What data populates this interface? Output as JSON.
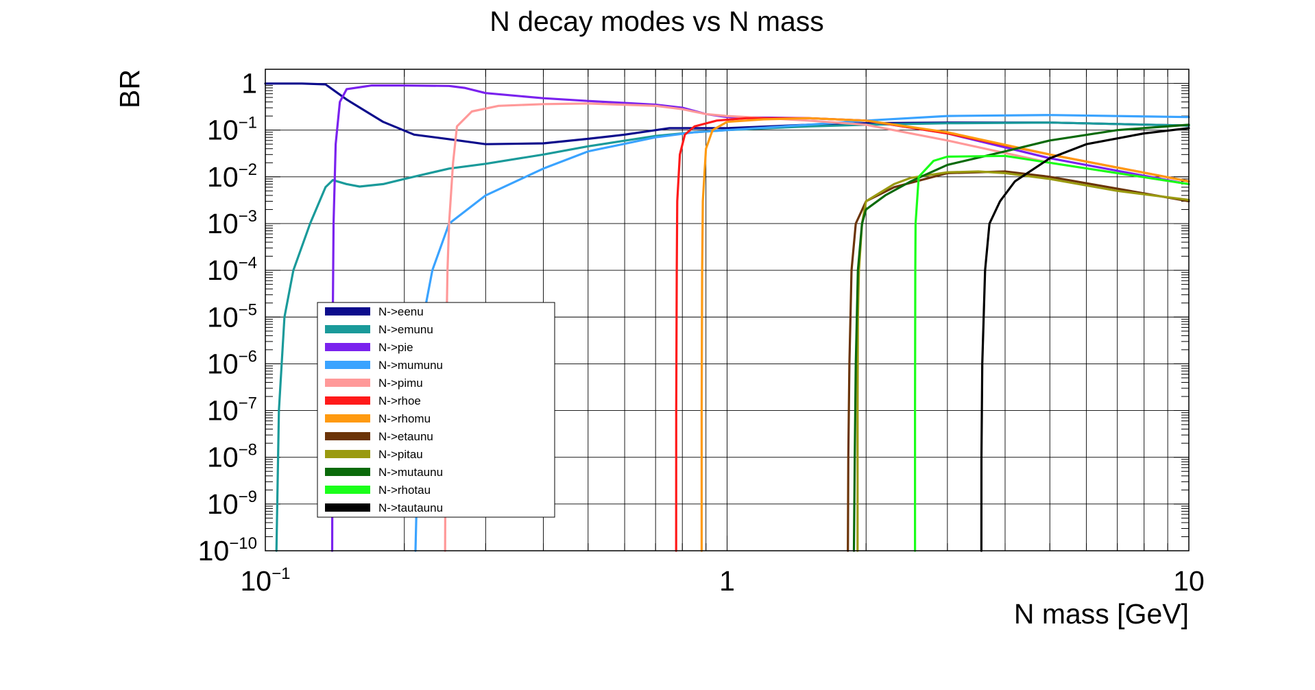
{
  "chart_data": {
    "type": "line",
    "title": "N decay modes vs N mass",
    "xlabel": "N mass [GeV]",
    "ylabel": "BR",
    "x_scale": "log",
    "y_scale": "log",
    "xlim": [
      0.1,
      10
    ],
    "ylim": [
      1e-10,
      2
    ],
    "grid": true,
    "legend_position": "lower-left",
    "x_ticks": [
      {
        "value": 0.1,
        "base": "10",
        "exp": "−1"
      },
      {
        "value": 1,
        "base": "1",
        "exp": ""
      },
      {
        "value": 10,
        "base": "10",
        "exp": ""
      }
    ],
    "y_ticks": [
      {
        "value": 1,
        "base": "1",
        "exp": ""
      },
      {
        "value": 0.1,
        "base": "10",
        "exp": "−1"
      },
      {
        "value": 0.01,
        "base": "10",
        "exp": "−2"
      },
      {
        "value": 0.001,
        "base": "10",
        "exp": "−3"
      },
      {
        "value": 0.0001,
        "base": "10",
        "exp": "−4"
      },
      {
        "value": 1e-05,
        "base": "10",
        "exp": "−5"
      },
      {
        "value": 1e-06,
        "base": "10",
        "exp": "−6"
      },
      {
        "value": 1e-07,
        "base": "10",
        "exp": "−7"
      },
      {
        "value": 1e-08,
        "base": "10",
        "exp": "−8"
      },
      {
        "value": 1e-09,
        "base": "10",
        "exp": "−9"
      },
      {
        "value": 1e-10,
        "base": "10",
        "exp": "−10"
      }
    ],
    "series": [
      {
        "name": "N->eenu",
        "color": "#0c0c8c",
        "points": [
          [
            0.1,
            0.99
          ],
          [
            0.12,
            0.99
          ],
          [
            0.135,
            0.95
          ],
          [
            0.15,
            0.45
          ],
          [
            0.18,
            0.15
          ],
          [
            0.21,
            0.08
          ],
          [
            0.25,
            0.064
          ],
          [
            0.3,
            0.05
          ],
          [
            0.4,
            0.052
          ],
          [
            0.5,
            0.065
          ],
          [
            0.6,
            0.08
          ],
          [
            0.75,
            0.11
          ],
          [
            0.85,
            0.11
          ],
          [
            1.0,
            0.11
          ],
          [
            1.5,
            0.13
          ],
          [
            2.0,
            0.14
          ],
          [
            3.0,
            0.145
          ],
          [
            5.0,
            0.145
          ],
          [
            10.0,
            0.125
          ]
        ]
      },
      {
        "name": "N->emunu",
        "color": "#1a9a9a",
        "points": [
          [
            0.1057,
            1e-10
          ],
          [
            0.107,
            1e-07
          ],
          [
            0.11,
            1e-05
          ],
          [
            0.115,
            0.0001
          ],
          [
            0.125,
            0.001
          ],
          [
            0.135,
            0.006
          ],
          [
            0.14,
            0.0085
          ],
          [
            0.15,
            0.007
          ],
          [
            0.16,
            0.0062
          ],
          [
            0.18,
            0.007
          ],
          [
            0.2,
            0.009
          ],
          [
            0.25,
            0.015
          ],
          [
            0.3,
            0.019
          ],
          [
            0.4,
            0.03
          ],
          [
            0.5,
            0.045
          ],
          [
            0.7,
            0.075
          ],
          [
            0.85,
            0.09
          ],
          [
            1.0,
            0.1
          ],
          [
            1.5,
            0.12
          ],
          [
            2.0,
            0.13
          ],
          [
            3.0,
            0.14
          ],
          [
            5.0,
            0.145
          ],
          [
            10.0,
            0.125
          ]
        ]
      },
      {
        "name": "N->pie",
        "color": "#7a22ee",
        "points": [
          [
            0.13957,
            1e-10
          ],
          [
            0.14,
            1e-05
          ],
          [
            0.1405,
            0.001
          ],
          [
            0.142,
            0.05
          ],
          [
            0.145,
            0.4
          ],
          [
            0.15,
            0.75
          ],
          [
            0.17,
            0.9
          ],
          [
            0.2,
            0.9
          ],
          [
            0.25,
            0.88
          ],
          [
            0.27,
            0.8
          ],
          [
            0.3,
            0.62
          ],
          [
            0.4,
            0.48
          ],
          [
            0.5,
            0.42
          ],
          [
            0.7,
            0.35
          ],
          [
            0.8,
            0.3
          ],
          [
            0.9,
            0.22
          ],
          [
            1.0,
            0.19
          ],
          [
            1.5,
            0.18
          ],
          [
            2.0,
            0.16
          ],
          [
            3.0,
            0.085
          ],
          [
            5.0,
            0.025
          ],
          [
            10.0,
            0.007
          ]
        ]
      },
      {
        "name": "N->mumunu",
        "color": "#3aa3ff",
        "points": [
          [
            0.2114,
            1e-10
          ],
          [
            0.215,
            1e-07
          ],
          [
            0.22,
            1e-05
          ],
          [
            0.23,
            0.0001
          ],
          [
            0.25,
            0.001
          ],
          [
            0.3,
            0.004
          ],
          [
            0.4,
            0.015
          ],
          [
            0.5,
            0.035
          ],
          [
            0.7,
            0.07
          ],
          [
            0.85,
            0.09
          ],
          [
            1.0,
            0.1
          ],
          [
            1.5,
            0.13
          ],
          [
            2.0,
            0.16
          ],
          [
            3.0,
            0.2
          ],
          [
            5.0,
            0.21
          ],
          [
            10.0,
            0.19
          ]
        ]
      },
      {
        "name": "N->pimu",
        "color": "#ff9999",
        "points": [
          [
            0.2451,
            1e-10
          ],
          [
            0.246,
            1e-06
          ],
          [
            0.248,
            0.0001
          ],
          [
            0.25,
            0.001
          ],
          [
            0.255,
            0.02
          ],
          [
            0.26,
            0.12
          ],
          [
            0.28,
            0.25
          ],
          [
            0.32,
            0.33
          ],
          [
            0.4,
            0.36
          ],
          [
            0.5,
            0.37
          ],
          [
            0.7,
            0.33
          ],
          [
            0.8,
            0.28
          ],
          [
            0.9,
            0.22
          ],
          [
            1.0,
            0.2
          ],
          [
            1.5,
            0.16
          ],
          [
            2.0,
            0.13
          ],
          [
            3.0,
            0.06
          ],
          [
            5.0,
            0.02
          ],
          [
            10.0,
            0.007
          ]
        ]
      },
      {
        "name": "N->rhoe",
        "color": "#ff1a1a",
        "points": [
          [
            0.7756,
            1e-10
          ],
          [
            0.776,
            1e-07
          ],
          [
            0.778,
            0.0001
          ],
          [
            0.78,
            0.003
          ],
          [
            0.79,
            0.03
          ],
          [
            0.81,
            0.08
          ],
          [
            0.85,
            0.12
          ],
          [
            0.95,
            0.16
          ],
          [
            1.1,
            0.18
          ],
          [
            1.5,
            0.18
          ],
          [
            2.0,
            0.16
          ],
          [
            3.0,
            0.085
          ],
          [
            5.0,
            0.03
          ],
          [
            10.0,
            0.008
          ]
        ]
      },
      {
        "name": "N->rhomu",
        "color": "#ff9a10",
        "points": [
          [
            0.8808,
            1e-10
          ],
          [
            0.881,
            1e-07
          ],
          [
            0.883,
            0.0001
          ],
          [
            0.886,
            0.003
          ],
          [
            0.9,
            0.04
          ],
          [
            0.93,
            0.1
          ],
          [
            1.0,
            0.15
          ],
          [
            1.2,
            0.17
          ],
          [
            1.5,
            0.18
          ],
          [
            2.0,
            0.16
          ],
          [
            3.0,
            0.09
          ],
          [
            5.0,
            0.03
          ],
          [
            10.0,
            0.008
          ]
        ]
      },
      {
        "name": "N->etaunu",
        "color": "#6b3408",
        "points": [
          [
            1.8263,
            1e-10
          ],
          [
            1.83,
            1e-08
          ],
          [
            1.84,
            1e-06
          ],
          [
            1.86,
            0.0001
          ],
          [
            1.9,
            0.001
          ],
          [
            2.0,
            0.003
          ],
          [
            2.3,
            0.006
          ],
          [
            3.0,
            0.012
          ],
          [
            4.0,
            0.013
          ],
          [
            5.0,
            0.01
          ],
          [
            10.0,
            0.003
          ]
        ]
      },
      {
        "name": "N->pitau",
        "color": "#9a9a10",
        "points": [
          [
            1.9165,
            1e-10
          ],
          [
            1.917,
            1e-07
          ],
          [
            1.92,
            1e-05
          ],
          [
            1.93,
            0.0001
          ],
          [
            1.96,
            0.001
          ],
          [
            2.0,
            0.003
          ],
          [
            2.3,
            0.007
          ],
          [
            2.5,
            0.0095
          ],
          [
            3.0,
            0.0125
          ],
          [
            3.5,
            0.013
          ],
          [
            4.0,
            0.012
          ],
          [
            5.0,
            0.009
          ],
          [
            7.0,
            0.005
          ],
          [
            10.0,
            0.0032
          ]
        ]
      },
      {
        "name": "N->mutaunu",
        "color": "#0a6a0a",
        "points": [
          [
            1.8826,
            1e-10
          ],
          [
            1.89,
            1e-08
          ],
          [
            1.9,
            1e-06
          ],
          [
            1.92,
            0.0001
          ],
          [
            1.96,
            0.001
          ],
          [
            2.0,
            0.002
          ],
          [
            2.2,
            0.004
          ],
          [
            2.5,
            0.008
          ],
          [
            3.0,
            0.018
          ],
          [
            4.0,
            0.035
          ],
          [
            5.0,
            0.06
          ],
          [
            7.0,
            0.1
          ],
          [
            10.0,
            0.13
          ]
        ]
      },
      {
        "name": "N->rhotau",
        "color": "#1aff1a",
        "points": [
          [
            2.5524,
            1e-10
          ],
          [
            2.553,
            1e-07
          ],
          [
            2.556,
            0.0001
          ],
          [
            2.56,
            0.001
          ],
          [
            2.6,
            0.01
          ],
          [
            2.8,
            0.022
          ],
          [
            3.0,
            0.027
          ],
          [
            4.0,
            0.028
          ],
          [
            5.0,
            0.02
          ],
          [
            7.0,
            0.012
          ],
          [
            10.0,
            0.007
          ]
        ]
      },
      {
        "name": "N->tautaunu",
        "color": "#000000",
        "points": [
          [
            3.5538,
            1e-10
          ],
          [
            3.555,
            1e-08
          ],
          [
            3.57,
            1e-06
          ],
          [
            3.62,
            0.0001
          ],
          [
            3.7,
            0.001
          ],
          [
            3.9,
            0.003
          ],
          [
            4.2,
            0.008
          ],
          [
            5.0,
            0.025
          ],
          [
            6.0,
            0.05
          ],
          [
            8.0,
            0.085
          ],
          [
            10.0,
            0.11
          ]
        ]
      }
    ]
  }
}
